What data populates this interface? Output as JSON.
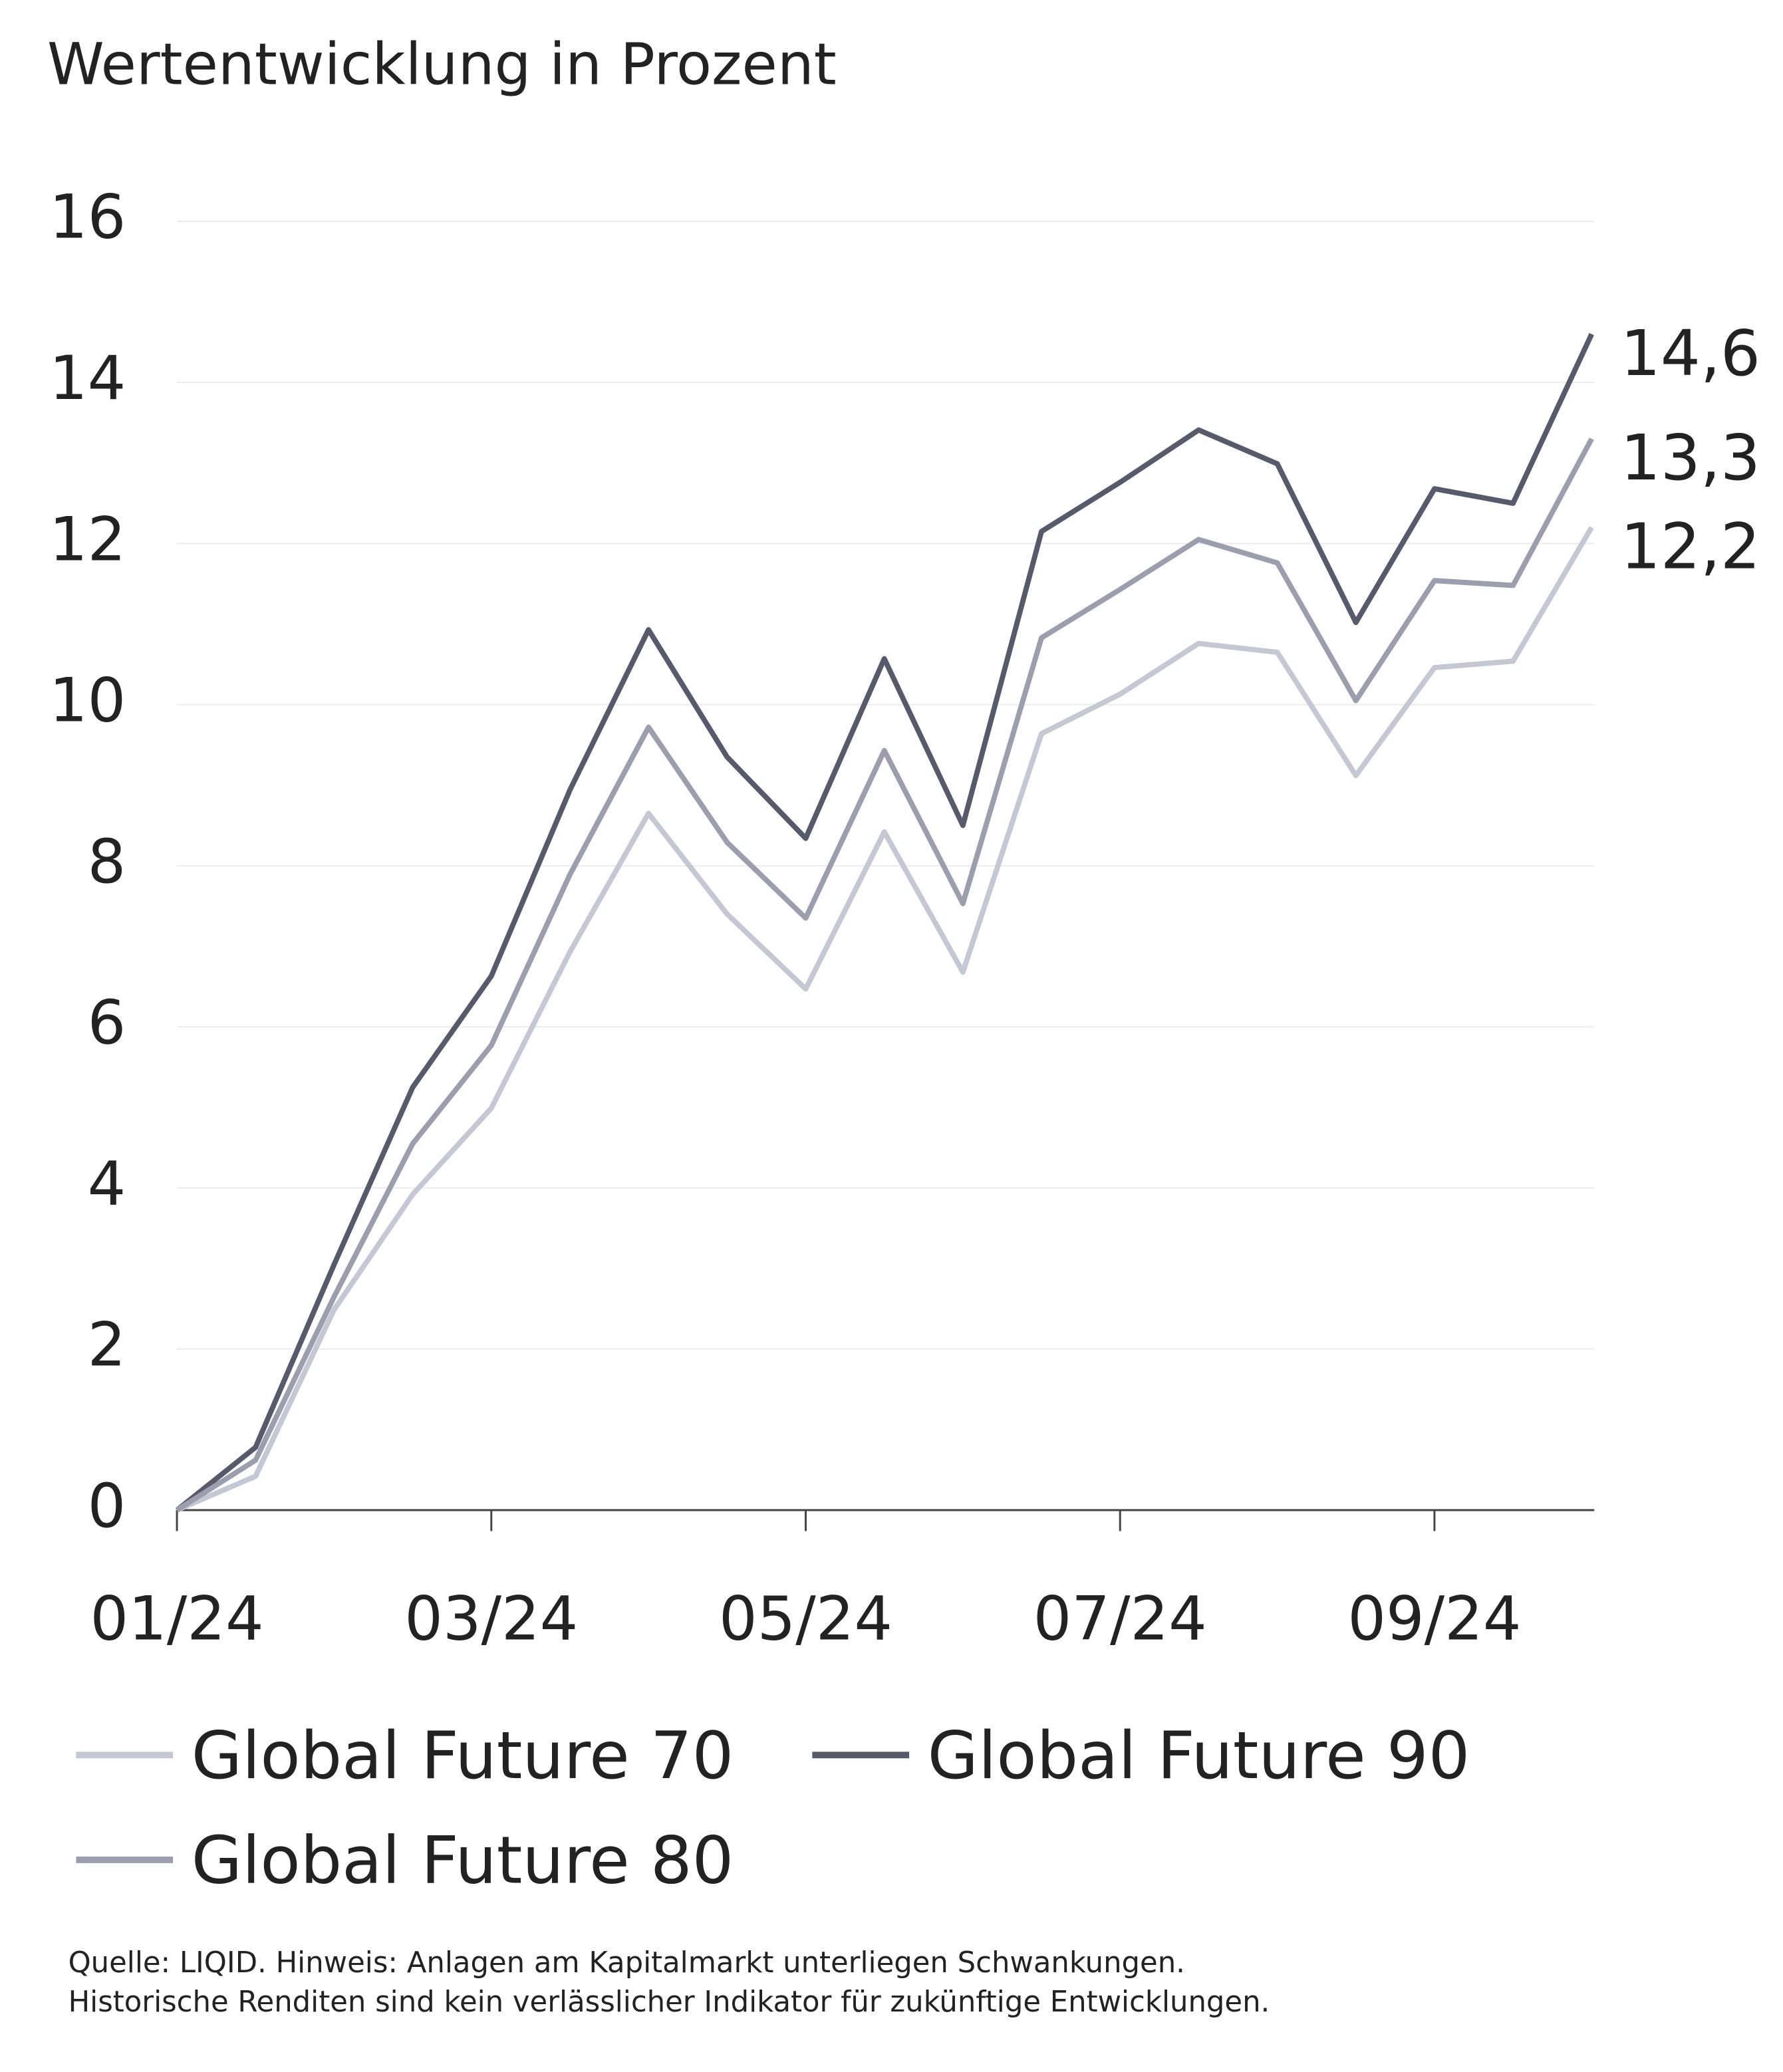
{
  "chart_data": {
    "type": "line",
    "title": "Wertentwicklung in Prozent",
    "categories": [
      "01/24",
      null,
      null,
      null,
      "03/24",
      null,
      null,
      null,
      "05/24",
      null,
      null,
      null,
      "07/24",
      null,
      null,
      null,
      "09/24",
      null,
      null
    ],
    "series": [
      {
        "name": "Global Future 70",
        "color": "#c5c7d3",
        "values": [
          0,
          0.42,
          2.49,
          3.92,
          4.99,
          6.93,
          8.65,
          7.4,
          6.47,
          8.42,
          6.68,
          9.64,
          10.13,
          10.76,
          10.65,
          9.12,
          10.46,
          10.54,
          12.2
        ],
        "value_labels": [
          null,
          null,
          null,
          null,
          null,
          null,
          null,
          null,
          null,
          null,
          null,
          null,
          null,
          null,
          null,
          null,
          null,
          null,
          "12,2"
        ]
      },
      {
        "name": "Global Future 90",
        "color": "#575a6b",
        "values": [
          0,
          0.78,
          3.05,
          5.25,
          6.63,
          8.94,
          10.93,
          9.35,
          8.34,
          10.57,
          8.5,
          12.15,
          12.76,
          13.41,
          12.99,
          11.02,
          12.68,
          12.5,
          14.6
        ],
        "value_labels": [
          null,
          null,
          null,
          null,
          null,
          null,
          null,
          null,
          null,
          null,
          null,
          null,
          null,
          null,
          null,
          null,
          null,
          null,
          "14,6"
        ]
      },
      {
        "name": "Global Future 80",
        "color": "#9c9eae",
        "values": [
          0,
          0.62,
          2.65,
          4.55,
          5.77,
          7.89,
          9.72,
          8.29,
          7.35,
          9.43,
          7.53,
          10.83,
          11.43,
          12.05,
          11.76,
          10.05,
          11.54,
          11.48,
          13.3
        ],
        "value_labels": [
          null,
          null,
          null,
          null,
          null,
          null,
          null,
          null,
          null,
          null,
          null,
          null,
          null,
          null,
          null,
          null,
          null,
          null,
          "13,3"
        ]
      }
    ],
    "ylim": [
      0,
      16
    ],
    "yticks": [
      0,
      2,
      4,
      6,
      8,
      10,
      12,
      14,
      16
    ],
    "grid": true,
    "footnote": [
      "Quelle: LIQID. Hinweis: Anlagen am Kapitalmarkt unterliegen Schwankungen.",
      "Historische Renditen sind kein verlässlicher Indikator für zukünftige Entwicklungen."
    ]
  }
}
